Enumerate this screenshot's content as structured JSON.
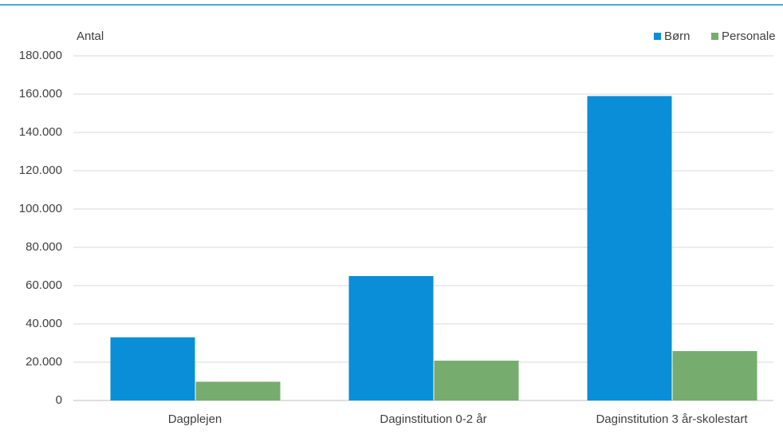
{
  "chart_data": {
    "type": "bar",
    "y_label": "Antal",
    "categories": [
      "Dagplejen",
      "Daginstitution 0-2 år",
      "Daginstitution 3 år-skolestart"
    ],
    "series": [
      {
        "name": "Børn",
        "color": "#0a8ed8",
        "values": [
          33000,
          65000,
          159000
        ]
      },
      {
        "name": "Personale",
        "color": "#76ac6e",
        "values": [
          9800,
          20800,
          25800
        ]
      }
    ],
    "ylim": [
      0,
      180000
    ],
    "yticks": [
      0,
      {
        "value": 20000,
        "label": "20.000"
      },
      {
        "value": 40000,
        "label": "40.000"
      },
      {
        "value": 60000,
        "label": "60.000"
      },
      {
        "value": 80000,
        "label": "80.000"
      },
      {
        "value": 100000,
        "label": "100.000"
      },
      {
        "value": 120000,
        "label": "120.000"
      },
      {
        "value": 140000,
        "label": "140.000"
      },
      {
        "value": 160000,
        "label": "160.000"
      },
      {
        "value": 180000,
        "label": "180.000"
      }
    ],
    "grid": true,
    "legend": "top-right"
  }
}
